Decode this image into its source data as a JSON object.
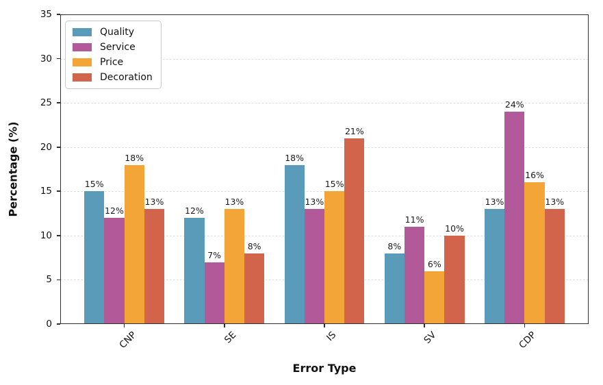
{
  "chart_data": {
    "type": "bar",
    "title": "",
    "xlabel": "Error Type",
    "ylabel": "Percentage (%)",
    "categories": [
      "CNP",
      "SE",
      "IS",
      "SV",
      "CDP"
    ],
    "series": [
      {
        "name": "Quality",
        "color": "#5A9BB9",
        "values": [
          15,
          12,
          18,
          8,
          13
        ]
      },
      {
        "name": "Service",
        "color": "#B2599A",
        "values": [
          12,
          7,
          13,
          11,
          24
        ]
      },
      {
        "name": "Price",
        "color": "#F3A537",
        "values": [
          18,
          13,
          15,
          6,
          16
        ]
      },
      {
        "name": "Decoration",
        "color": "#D2644B",
        "values": [
          13,
          8,
          21,
          10,
          13
        ]
      }
    ],
    "value_label_suffix": "%",
    "ylim": [
      0,
      35
    ],
    "yticks": [
      0,
      5,
      10,
      15,
      20,
      25,
      30,
      35
    ],
    "grid": "horizontal-dashed",
    "legend_position": "upper-left",
    "background_color": "#ffffff"
  }
}
